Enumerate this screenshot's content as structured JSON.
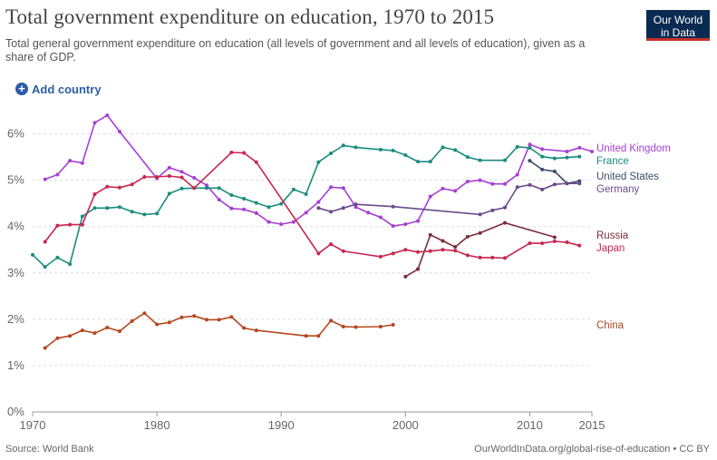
{
  "header": {
    "title": "Total government expenditure on education, 1970 to 2015",
    "subtitle": "Total general government expenditure on education (all levels of government and all levels of education), given as a share of GDP.",
    "logo_line1": "Our World",
    "logo_line2": "in Data"
  },
  "controls": {
    "add_country_label": "Add country",
    "add_icon": "plus-circle-icon"
  },
  "footer": {
    "source": "Source: World Bank",
    "credit": "OurWorldInData.org/global-rise-of-education • CC BY"
  },
  "colors": {
    "logo_bg": "#0b2a51",
    "logo_accent": "#c4302b",
    "link": "#2e5da5"
  },
  "chart_data": {
    "type": "line",
    "xlim": [
      1970,
      2015
    ],
    "ylim": [
      0,
      6.5
    ],
    "x_ticks": [
      "1970",
      "1980",
      "1990",
      "2000",
      "2010",
      "2015"
    ],
    "x_tick_values": [
      1970,
      1980,
      1990,
      2000,
      2010,
      2015
    ],
    "y_ticks": [
      "0%",
      "1%",
      "2%",
      "3%",
      "4%",
      "5%",
      "6%"
    ],
    "y_tick_values": [
      0,
      1,
      2,
      3,
      4,
      5,
      6
    ],
    "grid": "horizontal dashed",
    "legend": "right, labels at line ends",
    "series": [
      {
        "name": "United Kingdom",
        "color": "#a63fd4",
        "points": [
          [
            1971,
            5.02
          ],
          [
            1972,
            5.12
          ],
          [
            1973,
            5.42
          ],
          [
            1974,
            5.37
          ],
          [
            1975,
            6.24
          ],
          [
            1976,
            6.4
          ],
          [
            1977,
            6.05
          ],
          [
            1980,
            5.04
          ],
          [
            1981,
            5.27
          ],
          [
            1982,
            5.18
          ],
          [
            1983,
            5.05
          ],
          [
            1984,
            4.89
          ],
          [
            1985,
            4.58
          ],
          [
            1986,
            4.39
          ],
          [
            1987,
            4.37
          ],
          [
            1988,
            4.29
          ],
          [
            1989,
            4.1
          ],
          [
            1990,
            4.05
          ],
          [
            1991,
            4.1
          ],
          [
            1992,
            4.3
          ],
          [
            1993,
            4.53
          ],
          [
            1994,
            4.85
          ],
          [
            1995,
            4.83
          ],
          [
            1996,
            4.42
          ],
          [
            1997,
            4.3
          ],
          [
            1998,
            4.2
          ],
          [
            1999,
            4.01
          ],
          [
            2000,
            4.05
          ],
          [
            2001,
            4.12
          ],
          [
            2002,
            4.65
          ],
          [
            2003,
            4.82
          ],
          [
            2004,
            4.77
          ],
          [
            2005,
            4.97
          ],
          [
            2006,
            5.0
          ],
          [
            2007,
            4.92
          ],
          [
            2008,
            4.92
          ],
          [
            2009,
            5.12
          ],
          [
            2010,
            5.77
          ],
          [
            2011,
            5.67
          ],
          [
            2013,
            5.62
          ],
          [
            2014,
            5.7
          ],
          [
            2015,
            5.62
          ]
        ]
      },
      {
        "name": "France",
        "color": "#1a8c7f",
        "points": [
          [
            1970,
            3.39
          ],
          [
            1971,
            3.13
          ],
          [
            1972,
            3.33
          ],
          [
            1973,
            3.19
          ],
          [
            1974,
            4.22
          ],
          [
            1975,
            4.4
          ],
          [
            1976,
            4.4
          ],
          [
            1977,
            4.42
          ],
          [
            1978,
            4.32
          ],
          [
            1979,
            4.26
          ],
          [
            1980,
            4.28
          ],
          [
            1981,
            4.71
          ],
          [
            1982,
            4.82
          ],
          [
            1983,
            4.83
          ],
          [
            1984,
            4.83
          ],
          [
            1985,
            4.83
          ],
          [
            1986,
            4.68
          ],
          [
            1987,
            4.6
          ],
          [
            1988,
            4.51
          ],
          [
            1989,
            4.42
          ],
          [
            1990,
            4.49
          ],
          [
            1991,
            4.8
          ],
          [
            1992,
            4.7
          ],
          [
            1993,
            5.39
          ],
          [
            1994,
            5.58
          ],
          [
            1995,
            5.75
          ],
          [
            1996,
            5.71
          ],
          [
            1998,
            5.66
          ],
          [
            1999,
            5.64
          ],
          [
            2000,
            5.54
          ],
          [
            2001,
            5.4
          ],
          [
            2002,
            5.4
          ],
          [
            2003,
            5.71
          ],
          [
            2004,
            5.65
          ],
          [
            2005,
            5.5
          ],
          [
            2006,
            5.43
          ],
          [
            2008,
            5.43
          ],
          [
            2009,
            5.72
          ],
          [
            2010,
            5.7
          ],
          [
            2011,
            5.51
          ],
          [
            2012,
            5.47
          ],
          [
            2013,
            5.49
          ],
          [
            2014,
            5.51
          ]
        ]
      },
      {
        "name": "United States",
        "color": "#3a4f66",
        "points": [
          [
            2010,
            5.42
          ],
          [
            2011,
            5.23
          ],
          [
            2012,
            5.19
          ],
          [
            2013,
            4.93
          ],
          [
            2014,
            4.98
          ]
        ]
      },
      {
        "name": "Germany",
        "color": "#6b4a8c",
        "points": [
          [
            1993,
            4.4
          ],
          [
            1994,
            4.32
          ],
          [
            1995,
            4.4
          ],
          [
            1996,
            4.48
          ],
          [
            1999,
            4.43
          ],
          [
            2006,
            4.26
          ],
          [
            2007,
            4.35
          ],
          [
            2008,
            4.41
          ],
          [
            2009,
            4.85
          ],
          [
            2010,
            4.9
          ],
          [
            2011,
            4.8
          ],
          [
            2012,
            4.91
          ],
          [
            2013,
            4.93
          ],
          [
            2014,
            4.93
          ]
        ]
      },
      {
        "name": "Russia",
        "color": "#7a2e3a",
        "points": [
          [
            2000,
            2.92
          ],
          [
            2001,
            3.08
          ],
          [
            2002,
            3.82
          ],
          [
            2003,
            3.69
          ],
          [
            2004,
            3.56
          ],
          [
            2005,
            3.78
          ],
          [
            2006,
            3.86
          ],
          [
            2008,
            4.08
          ],
          [
            2012,
            3.77
          ]
        ]
      },
      {
        "name": "Japan",
        "color": "#c7264f",
        "points": [
          [
            1971,
            3.67
          ],
          [
            1972,
            4.02
          ],
          [
            1973,
            4.04
          ],
          [
            1974,
            4.04
          ],
          [
            1975,
            4.7
          ],
          [
            1976,
            4.86
          ],
          [
            1977,
            4.84
          ],
          [
            1978,
            4.91
          ],
          [
            1979,
            5.07
          ],
          [
            1980,
            5.07
          ],
          [
            1981,
            5.09
          ],
          [
            1982,
            5.06
          ],
          [
            1983,
            4.83
          ],
          [
            1986,
            5.6
          ],
          [
            1987,
            5.59
          ],
          [
            1988,
            5.39
          ],
          [
            1993,
            3.42
          ],
          [
            1994,
            3.62
          ],
          [
            1995,
            3.47
          ],
          [
            1998,
            3.35
          ],
          [
            1999,
            3.42
          ],
          [
            2000,
            3.5
          ],
          [
            2001,
            3.45
          ],
          [
            2002,
            3.47
          ],
          [
            2003,
            3.5
          ],
          [
            2004,
            3.48
          ],
          [
            2005,
            3.38
          ],
          [
            2006,
            3.33
          ],
          [
            2007,
            3.33
          ],
          [
            2008,
            3.32
          ],
          [
            2010,
            3.64
          ],
          [
            2011,
            3.64
          ],
          [
            2012,
            3.68
          ],
          [
            2013,
            3.66
          ],
          [
            2014,
            3.59
          ]
        ]
      },
      {
        "name": "China",
        "color": "#b5461e",
        "points": [
          [
            1971,
            1.38
          ],
          [
            1972,
            1.59
          ],
          [
            1973,
            1.64
          ],
          [
            1974,
            1.76
          ],
          [
            1975,
            1.7
          ],
          [
            1976,
            1.82
          ],
          [
            1977,
            1.74
          ],
          [
            1978,
            1.96
          ],
          [
            1979,
            2.13
          ],
          [
            1980,
            1.89
          ],
          [
            1981,
            1.93
          ],
          [
            1982,
            2.04
          ],
          [
            1983,
            2.07
          ],
          [
            1984,
            1.99
          ],
          [
            1985,
            1.99
          ],
          [
            1986,
            2.05
          ],
          [
            1987,
            1.81
          ],
          [
            1988,
            1.76
          ],
          [
            1992,
            1.64
          ],
          [
            1993,
            1.64
          ],
          [
            1994,
            1.97
          ],
          [
            1995,
            1.84
          ],
          [
            1996,
            1.83
          ],
          [
            1998,
            1.84
          ],
          [
            1999,
            1.88
          ]
        ]
      }
    ]
  }
}
